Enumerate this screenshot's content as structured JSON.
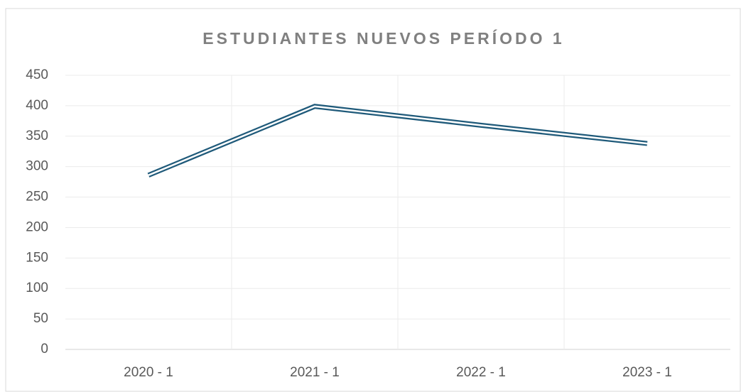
{
  "chart_data": {
    "type": "line",
    "title": "ESTUDIANTES NUEVOS PERÍODO 1",
    "categories": [
      "2020 - 1",
      "2021 - 1",
      "2022 - 1",
      "2023 - 1"
    ],
    "values": [
      286,
      399,
      368,
      338
    ],
    "color": "#1f5a7a",
    "ylim": [
      0,
      450
    ],
    "yticks": [
      0,
      50,
      100,
      150,
      200,
      250,
      300,
      350,
      400,
      450
    ],
    "grid": true
  }
}
